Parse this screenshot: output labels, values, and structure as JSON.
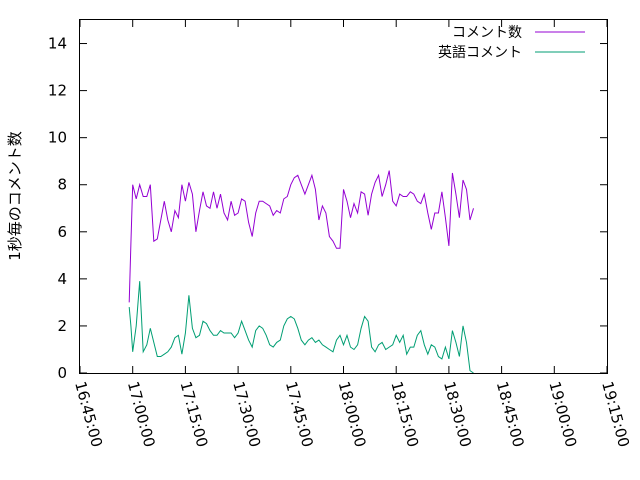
{
  "chart_data": {
    "type": "line",
    "title": "",
    "xlabel": "",
    "ylabel": "1秒毎のコメント数",
    "xlim": [
      "16:45:00",
      "19:15:00"
    ],
    "ylim": [
      0,
      15
    ],
    "x_ticks": [
      "16:45:00",
      "17:00:00",
      "17:15:00",
      "17:30:00",
      "17:45:00",
      "18:00:00",
      "18:15:00",
      "18:30:00",
      "18:45:00",
      "19:00:00",
      "19:15:00"
    ],
    "y_ticks": [
      "0",
      "2",
      "4",
      "6",
      "8",
      "10",
      "12",
      "14"
    ],
    "legend_position": "top-right",
    "grid": false,
    "series": [
      {
        "name": "コメント数",
        "color": "#9400d3",
        "points": [
          [
            "16:59:00",
            3.0
          ],
          [
            "16:59:30",
            5.5
          ],
          [
            "17:00:00",
            8.0
          ],
          [
            "17:01:00",
            7.4
          ],
          [
            "17:02:00",
            8.0
          ],
          [
            "17:03:00",
            7.5
          ],
          [
            "17:04:00",
            7.5
          ],
          [
            "17:05:00",
            8.0
          ],
          [
            "17:06:00",
            5.6
          ],
          [
            "17:07:00",
            5.7
          ],
          [
            "17:08:00",
            6.5
          ],
          [
            "17:09:00",
            7.3
          ],
          [
            "17:10:00",
            6.5
          ],
          [
            "17:11:00",
            6.0
          ],
          [
            "17:12:00",
            6.9
          ],
          [
            "17:13:00",
            6.6
          ],
          [
            "17:14:00",
            8.0
          ],
          [
            "17:15:00",
            7.3
          ],
          [
            "17:16:00",
            8.1
          ],
          [
            "17:17:00",
            7.6
          ],
          [
            "17:18:00",
            6.0
          ],
          [
            "17:19:00",
            6.9
          ],
          [
            "17:20:00",
            7.7
          ],
          [
            "17:21:00",
            7.1
          ],
          [
            "17:22:00",
            7.0
          ],
          [
            "17:23:00",
            7.7
          ],
          [
            "17:24:00",
            7.0
          ],
          [
            "17:25:00",
            7.6
          ],
          [
            "17:26:00",
            6.8
          ],
          [
            "17:27:00",
            6.5
          ],
          [
            "17:28:00",
            7.3
          ],
          [
            "17:29:00",
            6.7
          ],
          [
            "17:30:00",
            6.8
          ],
          [
            "17:31:00",
            7.4
          ],
          [
            "17:32:00",
            7.3
          ],
          [
            "17:33:00",
            6.4
          ],
          [
            "17:34:00",
            5.8
          ],
          [
            "17:35:00",
            6.8
          ],
          [
            "17:36:00",
            7.3
          ],
          [
            "17:37:00",
            7.3
          ],
          [
            "17:38:00",
            7.2
          ],
          [
            "17:39:00",
            7.1
          ],
          [
            "17:40:00",
            6.7
          ],
          [
            "17:41:00",
            6.9
          ],
          [
            "17:42:00",
            6.8
          ],
          [
            "17:43:00",
            7.4
          ],
          [
            "17:44:00",
            7.5
          ],
          [
            "17:45:00",
            8.0
          ],
          [
            "17:46:00",
            8.3
          ],
          [
            "17:47:00",
            8.4
          ],
          [
            "17:48:00",
            8.0
          ],
          [
            "17:49:00",
            7.6
          ],
          [
            "17:50:00",
            8.0
          ],
          [
            "17:51:00",
            8.4
          ],
          [
            "17:52:00",
            7.8
          ],
          [
            "17:53:00",
            6.5
          ],
          [
            "17:54:00",
            7.1
          ],
          [
            "17:55:00",
            6.8
          ],
          [
            "17:56:00",
            5.8
          ],
          [
            "17:57:00",
            5.6
          ],
          [
            "17:58:00",
            5.3
          ],
          [
            "17:59:00",
            5.3
          ],
          [
            "18:00:00",
            7.8
          ],
          [
            "18:01:00",
            7.3
          ],
          [
            "18:02:00",
            6.6
          ],
          [
            "18:03:00",
            7.2
          ],
          [
            "18:04:00",
            6.8
          ],
          [
            "18:05:00",
            7.7
          ],
          [
            "18:06:00",
            7.6
          ],
          [
            "18:07:00",
            6.7
          ],
          [
            "18:08:00",
            7.6
          ],
          [
            "18:09:00",
            8.1
          ],
          [
            "18:10:00",
            8.4
          ],
          [
            "18:11:00",
            7.5
          ],
          [
            "18:12:00",
            8.0
          ],
          [
            "18:13:00",
            8.6
          ],
          [
            "18:14:00",
            7.3
          ],
          [
            "18:15:00",
            7.1
          ],
          [
            "18:16:00",
            7.6
          ],
          [
            "18:17:00",
            7.5
          ],
          [
            "18:18:00",
            7.5
          ],
          [
            "18:19:00",
            7.7
          ],
          [
            "18:20:00",
            7.6
          ],
          [
            "18:21:00",
            7.3
          ],
          [
            "18:22:00",
            7.2
          ],
          [
            "18:23:00",
            7.6
          ],
          [
            "18:24:00",
            6.8
          ],
          [
            "18:25:00",
            6.1
          ],
          [
            "18:26:00",
            6.8
          ],
          [
            "18:27:00",
            6.8
          ],
          [
            "18:28:00",
            7.7
          ],
          [
            "18:29:00",
            6.6
          ],
          [
            "18:30:00",
            5.4
          ],
          [
            "18:31:00",
            8.5
          ],
          [
            "18:32:00",
            7.6
          ],
          [
            "18:33:00",
            6.6
          ],
          [
            "18:34:00",
            8.2
          ],
          [
            "18:35:00",
            7.8
          ],
          [
            "18:36:00",
            6.5
          ],
          [
            "18:37:00",
            7.0
          ]
        ]
      },
      {
        "name": "英語コメント",
        "color": "#009e73",
        "points": [
          [
            "16:59:00",
            2.8
          ],
          [
            "16:59:30",
            2.0
          ],
          [
            "17:00:00",
            0.9
          ],
          [
            "17:01:00",
            2.0
          ],
          [
            "17:02:00",
            3.9
          ],
          [
            "17:03:00",
            0.9
          ],
          [
            "17:04:00",
            1.2
          ],
          [
            "17:05:00",
            1.9
          ],
          [
            "17:06:00",
            1.3
          ],
          [
            "17:07:00",
            0.7
          ],
          [
            "17:08:00",
            0.7
          ],
          [
            "17:09:00",
            0.8
          ],
          [
            "17:10:00",
            0.9
          ],
          [
            "17:11:00",
            1.1
          ],
          [
            "17:12:00",
            1.5
          ],
          [
            "17:13:00",
            1.6
          ],
          [
            "17:14:00",
            0.8
          ],
          [
            "17:15:00",
            1.7
          ],
          [
            "17:16:00",
            3.3
          ],
          [
            "17:17:00",
            1.9
          ],
          [
            "17:18:00",
            1.5
          ],
          [
            "17:19:00",
            1.6
          ],
          [
            "17:20:00",
            2.2
          ],
          [
            "17:21:00",
            2.1
          ],
          [
            "17:22:00",
            1.8
          ],
          [
            "17:23:00",
            1.6
          ],
          [
            "17:24:00",
            1.6
          ],
          [
            "17:25:00",
            1.8
          ],
          [
            "17:26:00",
            1.7
          ],
          [
            "17:27:00",
            1.7
          ],
          [
            "17:28:00",
            1.7
          ],
          [
            "17:29:00",
            1.5
          ],
          [
            "17:30:00",
            1.7
          ],
          [
            "17:31:00",
            2.2
          ],
          [
            "17:32:00",
            1.8
          ],
          [
            "17:33:00",
            1.4
          ],
          [
            "17:34:00",
            1.1
          ],
          [
            "17:35:00",
            1.8
          ],
          [
            "17:36:00",
            2.0
          ],
          [
            "17:37:00",
            1.9
          ],
          [
            "17:38:00",
            1.6
          ],
          [
            "17:39:00",
            1.2
          ],
          [
            "17:40:00",
            1.1
          ],
          [
            "17:41:00",
            1.3
          ],
          [
            "17:42:00",
            1.4
          ],
          [
            "17:43:00",
            2.0
          ],
          [
            "17:44:00",
            2.3
          ],
          [
            "17:45:00",
            2.4
          ],
          [
            "17:46:00",
            2.3
          ],
          [
            "17:47:00",
            1.9
          ],
          [
            "17:48:00",
            1.4
          ],
          [
            "17:49:00",
            1.2
          ],
          [
            "17:50:00",
            1.4
          ],
          [
            "17:51:00",
            1.5
          ],
          [
            "17:52:00",
            1.3
          ],
          [
            "17:53:00",
            1.4
          ],
          [
            "17:54:00",
            1.2
          ],
          [
            "17:55:00",
            1.1
          ],
          [
            "17:56:00",
            1.0
          ],
          [
            "17:57:00",
            0.9
          ],
          [
            "17:58:00",
            1.4
          ],
          [
            "17:59:00",
            1.6
          ],
          [
            "18:00:00",
            1.2
          ],
          [
            "18:01:00",
            1.6
          ],
          [
            "18:02:00",
            1.1
          ],
          [
            "18:03:00",
            1.0
          ],
          [
            "18:04:00",
            1.2
          ],
          [
            "18:05:00",
            1.9
          ],
          [
            "18:06:00",
            2.4
          ],
          [
            "18:07:00",
            2.2
          ],
          [
            "18:08:00",
            1.1
          ],
          [
            "18:09:00",
            0.9
          ],
          [
            "18:10:00",
            1.2
          ],
          [
            "18:11:00",
            1.3
          ],
          [
            "18:12:00",
            1.0
          ],
          [
            "18:13:00",
            1.1
          ],
          [
            "18:14:00",
            1.2
          ],
          [
            "18:15:00",
            1.6
          ],
          [
            "18:16:00",
            1.3
          ],
          [
            "18:17:00",
            1.6
          ],
          [
            "18:18:00",
            0.8
          ],
          [
            "18:19:00",
            1.1
          ],
          [
            "18:20:00",
            1.1
          ],
          [
            "18:21:00",
            1.6
          ],
          [
            "18:22:00",
            1.8
          ],
          [
            "18:23:00",
            1.2
          ],
          [
            "18:24:00",
            0.8
          ],
          [
            "18:25:00",
            1.2
          ],
          [
            "18:26:00",
            1.1
          ],
          [
            "18:27:00",
            0.7
          ],
          [
            "18:28:00",
            0.6
          ],
          [
            "18:29:00",
            1.1
          ],
          [
            "18:30:00",
            0.6
          ],
          [
            "18:31:00",
            1.8
          ],
          [
            "18:32:00",
            1.3
          ],
          [
            "18:33:00",
            0.7
          ],
          [
            "18:34:00",
            2.0
          ],
          [
            "18:35:00",
            1.3
          ],
          [
            "18:36:00",
            0.1
          ],
          [
            "18:37:00",
            0.0
          ]
        ]
      }
    ]
  }
}
